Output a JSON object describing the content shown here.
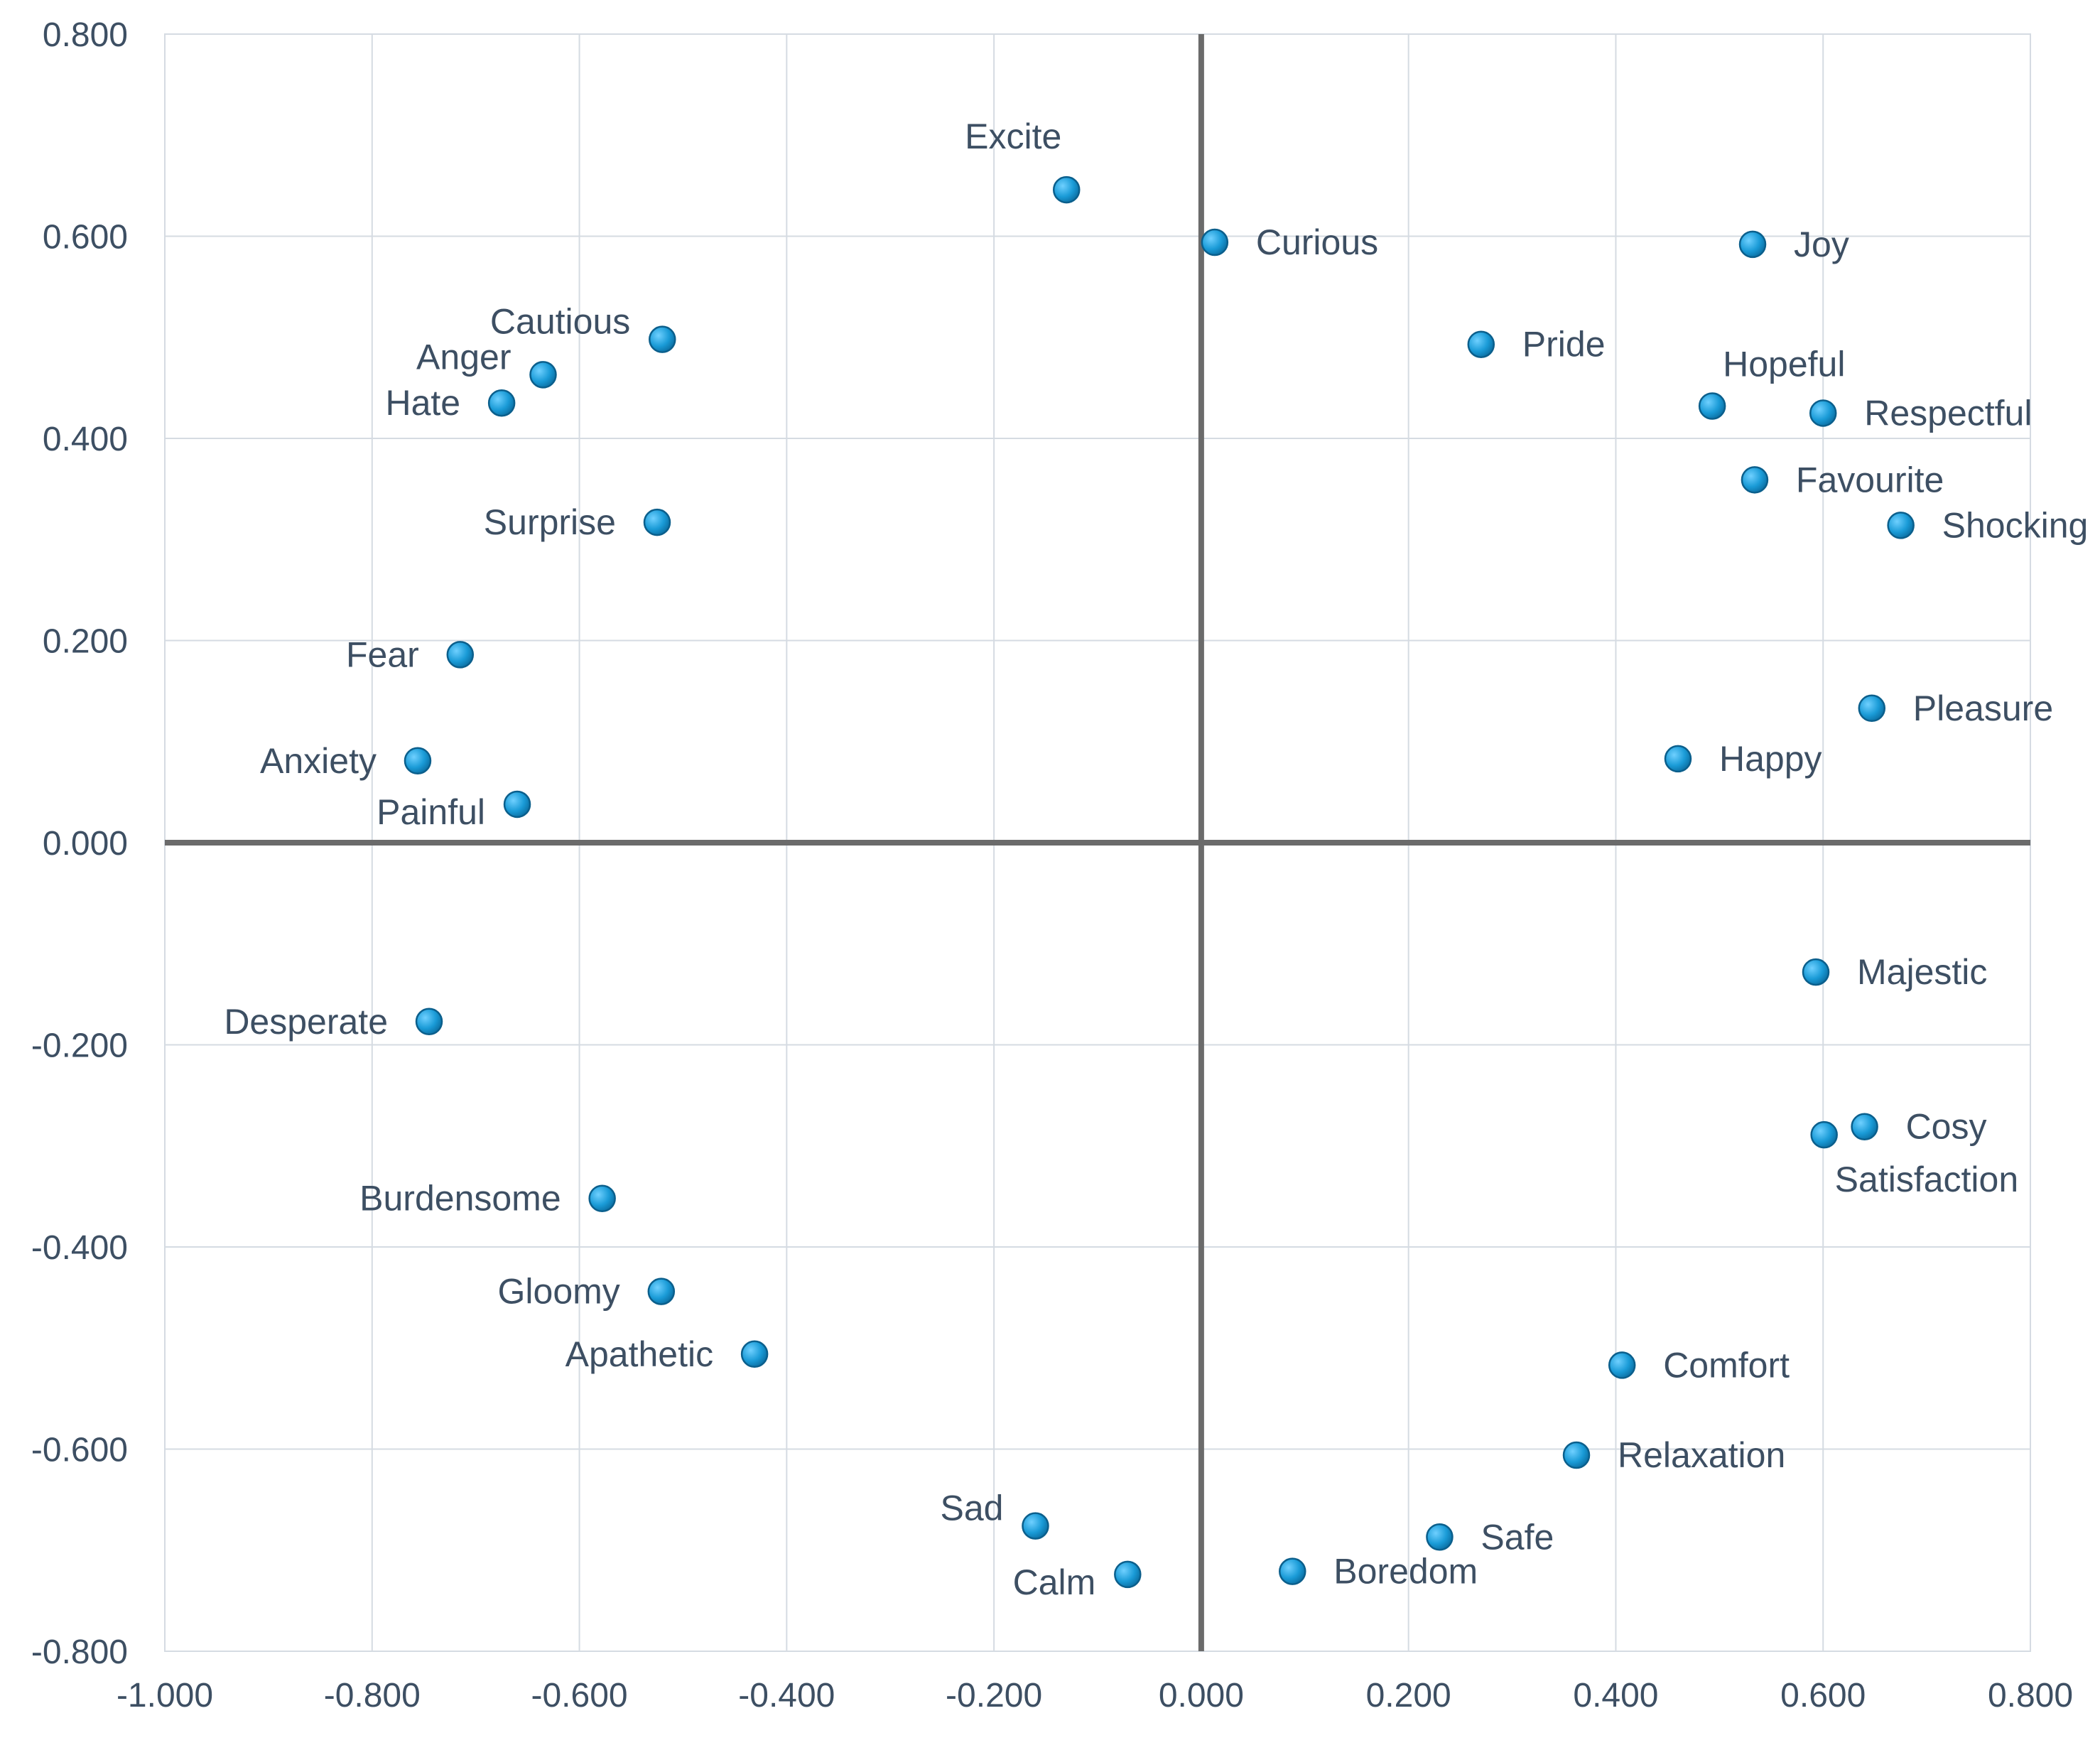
{
  "chart_data": {
    "type": "scatter",
    "title": "",
    "xlabel": "",
    "ylabel": "",
    "xlim": [
      -1.0,
      0.8
    ],
    "ylim": [
      -0.8,
      0.8
    ],
    "x_ticks": [
      -1.0,
      -0.8,
      -0.6,
      -0.4,
      -0.2,
      0.0,
      0.2,
      0.4,
      0.6,
      0.8
    ],
    "y_ticks": [
      -0.8,
      -0.6,
      -0.4,
      -0.2,
      0.0,
      0.2,
      0.4,
      0.6,
      0.8
    ],
    "x_tick_labels": [
      "-1.000",
      "-0.800",
      "-0.600",
      "-0.400",
      "-0.200",
      "0.000",
      "0.200",
      "0.400",
      "0.600",
      "0.800"
    ],
    "y_tick_labels": [
      "-0.800",
      "-0.600",
      "-0.400",
      "-0.200",
      "0.000",
      "0.200",
      "0.400",
      "0.600",
      "0.800"
    ],
    "grid": true,
    "legend": "none",
    "marker_color": "#1a9bd7",
    "marker_edge_color": "#0b5f8c",
    "axis_line_color": "#6b6b6b",
    "points": [
      {
        "label": "Excite",
        "x": -0.13,
        "y": 0.646,
        "pos": "top"
      },
      {
        "label": "Curious",
        "x": 0.013,
        "y": 0.594,
        "pos": "right"
      },
      {
        "label": "Joy",
        "x": 0.532,
        "y": 0.592,
        "pos": "right"
      },
      {
        "label": "Pride",
        "x": 0.27,
        "y": 0.493,
        "pos": "right"
      },
      {
        "label": "Hopeful",
        "x": 0.493,
        "y": 0.432,
        "pos": "above-right"
      },
      {
        "label": "Respectful",
        "x": 0.6,
        "y": 0.425,
        "pos": "right"
      },
      {
        "label": "Favourite",
        "x": 0.534,
        "y": 0.359,
        "pos": "right"
      },
      {
        "label": "Shocking",
        "x": 0.675,
        "y": 0.314,
        "pos": "right"
      },
      {
        "label": "Pleasure",
        "x": 0.647,
        "y": 0.133,
        "pos": "right"
      },
      {
        "label": "Happy",
        "x": 0.46,
        "y": 0.083,
        "pos": "right"
      },
      {
        "label": "Cautious",
        "x": -0.52,
        "y": 0.498,
        "pos": "above-left"
      },
      {
        "label": "Anger",
        "x": -0.635,
        "y": 0.463,
        "pos": "above-left"
      },
      {
        "label": "Hate",
        "x": -0.675,
        "y": 0.435,
        "pos": "left"
      },
      {
        "label": "Surprise",
        "x": -0.525,
        "y": 0.317,
        "pos": "left"
      },
      {
        "label": "Fear",
        "x": -0.715,
        "y": 0.186,
        "pos": "left"
      },
      {
        "label": "Anxiety",
        "x": -0.756,
        "y": 0.081,
        "pos": "left"
      },
      {
        "label": "Painful",
        "x": -0.66,
        "y": 0.038,
        "pos": "below-left"
      },
      {
        "label": "Majestic",
        "x": 0.593,
        "y": -0.128,
        "pos": "right"
      },
      {
        "label": "Cosy",
        "x": 0.64,
        "y": -0.281,
        "pos": "right"
      },
      {
        "label": "Satisfaction",
        "x": 0.601,
        "y": -0.289,
        "pos": "below"
      },
      {
        "label": "Comfort",
        "x": 0.406,
        "y": -0.517,
        "pos": "right"
      },
      {
        "label": "Relaxation",
        "x": 0.362,
        "y": -0.606,
        "pos": "right"
      },
      {
        "label": "Safe",
        "x": 0.23,
        "y": -0.687,
        "pos": "right"
      },
      {
        "label": "Boredom",
        "x": 0.088,
        "y": -0.721,
        "pos": "right"
      },
      {
        "label": "Desperate",
        "x": -0.745,
        "y": -0.177,
        "pos": "left"
      },
      {
        "label": "Burdensome",
        "x": -0.578,
        "y": -0.352,
        "pos": "left"
      },
      {
        "label": "Gloomy",
        "x": -0.521,
        "y": -0.444,
        "pos": "left"
      },
      {
        "label": "Apathetic",
        "x": -0.431,
        "y": -0.506,
        "pos": "left"
      },
      {
        "label": "Sad",
        "x": -0.16,
        "y": -0.676,
        "pos": "above-left"
      },
      {
        "label": "Calm",
        "x": -0.071,
        "y": -0.724,
        "pos": "below-left"
      }
    ]
  }
}
